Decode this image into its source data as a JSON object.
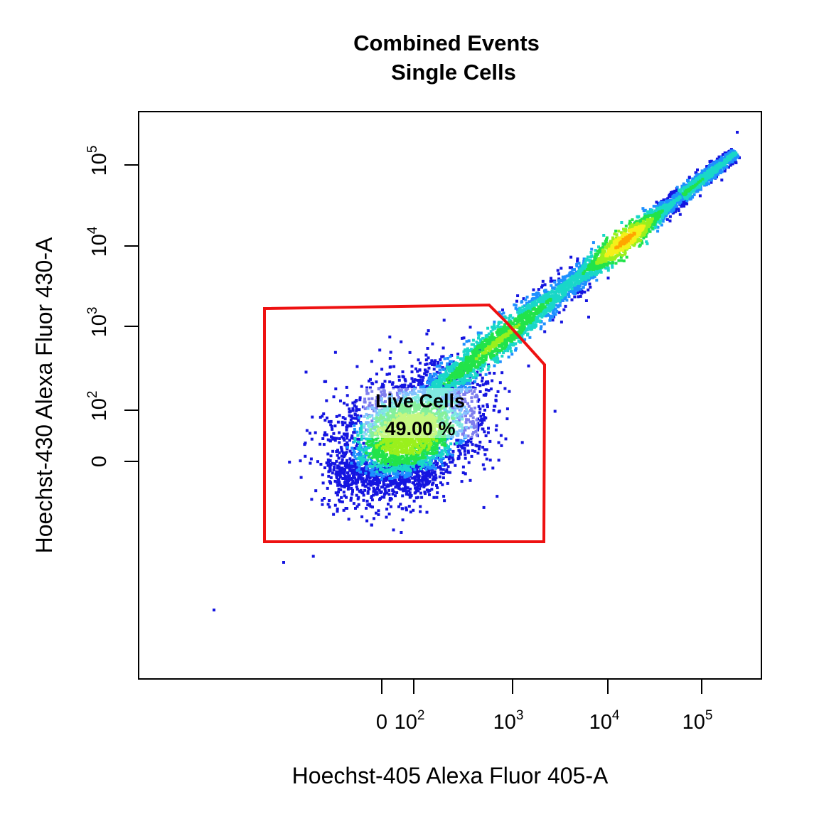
{
  "chart_data": {
    "type": "scatter",
    "title": [
      "Combined Events",
      "Single Cells"
    ],
    "xlabel": "Hoechst-405 Alexa Fluor 405-A",
    "ylabel": "Hoechst-430 Alexa Fluor 430-A",
    "x_scale": "logicle",
    "y_scale": "logicle",
    "x_ticks": [
      {
        "base": "0",
        "exp": ""
      },
      {
        "base": "10",
        "exp": "2"
      },
      {
        "base": "10",
        "exp": "3"
      },
      {
        "base": "10",
        "exp": "4"
      },
      {
        "base": "10",
        "exp": "5"
      }
    ],
    "y_ticks": [
      {
        "base": "0",
        "exp": ""
      },
      {
        "base": "10",
        "exp": "2"
      },
      {
        "base": "10",
        "exp": "3"
      },
      {
        "base": "10",
        "exp": "4"
      },
      {
        "base": "10",
        "exp": "5"
      }
    ],
    "density_colors": [
      "#1515e0",
      "#1e90ff",
      "#19d7c8",
      "#22e34a",
      "#9af01c",
      "#f4f01a",
      "#ffa500",
      "#e83a10",
      "#b00000"
    ],
    "gate": {
      "name": "Live Cells",
      "percent": "49.00 %",
      "color": "#ee1111"
    },
    "populations": [
      {
        "name": "live-cluster",
        "center_x": "~10^2",
        "center_y": "~10^2"
      },
      {
        "name": "diagonal-trail",
        "range_x": "10^3 to 2.5x10^5",
        "range_y": "10^3 to 2x10^5",
        "peak": "~2x10^4"
      }
    ]
  }
}
